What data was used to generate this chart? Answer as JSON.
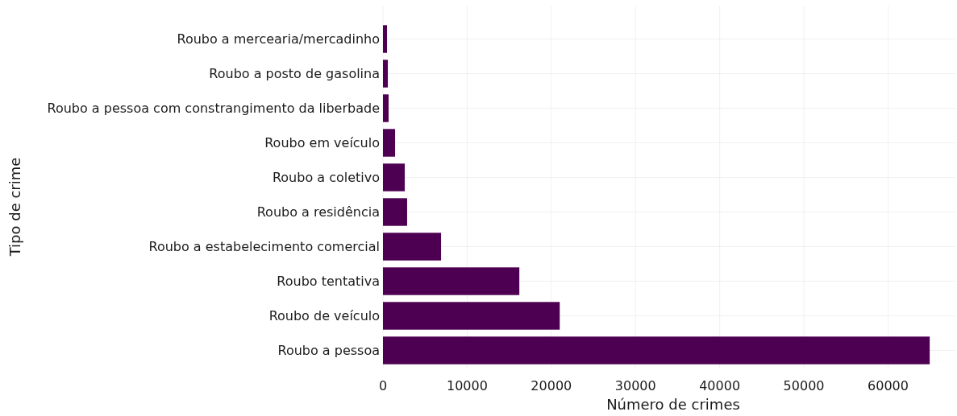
{
  "chart_data": {
    "type": "bar",
    "orientation": "horizontal",
    "xlabel": "Número de crimes",
    "ylabel": "Tipo de crime",
    "categories": [
      "Roubo a mercearia/mercadinho",
      "Roubo a posto de gasolina",
      "Roubo a pessoa com constrangimento da liberbade",
      "Roubo em veículo",
      "Roubo a coletivo",
      "Roubo a residência",
      "Roubo a estabelecimento comercial",
      "Roubo tentativa",
      "Roubo de veículo",
      "Roubo a pessoa"
    ],
    "values": [
      480,
      580,
      670,
      1440,
      2590,
      2870,
      6900,
      16200,
      21000,
      64950
    ],
    "color": "#4d0052",
    "xlim": [
      0,
      68000
    ],
    "xticks": [
      0,
      10000,
      20000,
      30000,
      40000,
      50000,
      60000
    ],
    "grid": true
  }
}
